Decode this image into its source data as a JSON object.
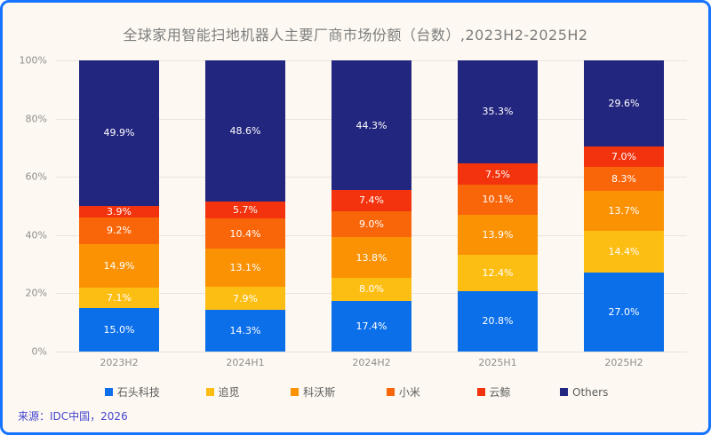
{
  "title": "全球家用智能扫地机器人主要厂商市场份额（台数）,2023H2-2025H2",
  "source": "来源：IDC中国，2026",
  "colors": {
    "frame_border": "#1673ff",
    "background": "#fdf9f2",
    "gridline": "#e9e4de",
    "title_text": "#7d7d7d",
    "axis_text": "#8f8d8a",
    "legend_text": "#5c5c5c",
    "source_text": "#4444cf",
    "bar_label_text": "#ffffff"
  },
  "chart_data": {
    "type": "bar",
    "stacked": true,
    "title": "全球家用智能扫地机器人主要厂商市场份额（台数）,2023H2-2025H2",
    "categories": [
      "2023H2",
      "2024H1",
      "2024H2",
      "2025H1",
      "2025H2"
    ],
    "series": [
      {
        "name": "石头科技",
        "color": "#0c6fea",
        "values": [
          15.0,
          14.3,
          17.4,
          20.8,
          27.0
        ]
      },
      {
        "name": "追觅",
        "color": "#fdbe14",
        "values": [
          7.1,
          7.9,
          8.0,
          12.4,
          14.4
        ]
      },
      {
        "name": "科沃斯",
        "color": "#fb9204",
        "values": [
          14.9,
          13.1,
          13.8,
          13.9,
          13.7
        ]
      },
      {
        "name": "小米",
        "color": "#f9660a",
        "values": [
          9.2,
          10.4,
          9.0,
          10.1,
          8.3
        ]
      },
      {
        "name": "云鲸",
        "color": "#f2330d",
        "values": [
          3.9,
          5.7,
          7.4,
          7.5,
          7.0
        ]
      },
      {
        "name": "Others",
        "color": "#23267e",
        "values": [
          49.9,
          48.6,
          44.3,
          35.3,
          29.6
        ]
      }
    ],
    "xlabel": "",
    "ylabel": "",
    "ylim": [
      0,
      100
    ],
    "yticks": [
      "0%",
      "20%",
      "40%",
      "60%",
      "80%",
      "100%"
    ],
    "value_suffix": "%",
    "value_decimals": 1,
    "grid": true,
    "legend_position": "bottom"
  }
}
